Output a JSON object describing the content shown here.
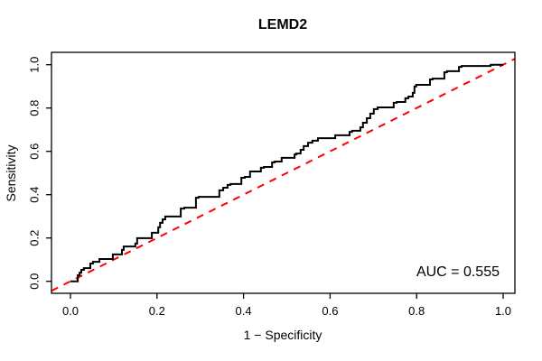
{
  "chart_data": {
    "type": "line",
    "title": "LEMD2",
    "xlabel": "1 − Specificity",
    "ylabel": "Sensitivity",
    "annotation": "AUC = 0.555",
    "auc": 0.555,
    "xlim": [
      0,
      1
    ],
    "ylim": [
      0,
      1
    ],
    "x_ticks": [
      0.0,
      0.2,
      0.4,
      0.6,
      0.8,
      1.0
    ],
    "y_ticks": [
      0.0,
      0.2,
      0.4,
      0.6,
      0.8,
      1.0
    ],
    "x_tick_labels": [
      "0.0",
      "0.2",
      "0.4",
      "0.6",
      "0.8",
      "1.0"
    ],
    "y_tick_labels": [
      "0.0",
      "0.2",
      "0.4",
      "0.6",
      "0.8",
      "1.0"
    ],
    "grid": false,
    "legend": "none",
    "colors": {
      "curve": "#000000",
      "reference": "#FF0000",
      "frame": "#000000",
      "background": "#FFFFFF"
    },
    "series": [
      {
        "name": "ROC curve",
        "style": "step",
        "color": "#000000",
        "line_width": 2,
        "points": [
          [
            0,
            0
          ],
          [
            0.017,
            0
          ],
          [
            0.017,
            0.015
          ],
          [
            0.021,
            0.028
          ],
          [
            0.025,
            0.04
          ],
          [
            0.031,
            0.053
          ],
          [
            0.035,
            0.061
          ],
          [
            0.046,
            0.061
          ],
          [
            0.046,
            0.082
          ],
          [
            0.052,
            0.082
          ],
          [
            0.052,
            0.09
          ],
          [
            0.067,
            0.09
          ],
          [
            0.067,
            0.103
          ],
          [
            0.098,
            0.103
          ],
          [
            0.098,
            0.12
          ],
          [
            0.119,
            0.124
          ],
          [
            0.123,
            0.145
          ],
          [
            0.129,
            0.161
          ],
          [
            0.15,
            0.161
          ],
          [
            0.154,
            0.174
          ],
          [
            0.161,
            0.199
          ],
          [
            0.188,
            0.199
          ],
          [
            0.188,
            0.224
          ],
          [
            0.203,
            0.224
          ],
          [
            0.207,
            0.249
          ],
          [
            0.213,
            0.27
          ],
          [
            0.219,
            0.286
          ],
          [
            0.225,
            0.299
          ],
          [
            0.255,
            0.299
          ],
          [
            0.263,
            0.336
          ],
          [
            0.29,
            0.34
          ],
          [
            0.296,
            0.386
          ],
          [
            0.344,
            0.39
          ],
          [
            0.353,
            0.42
          ],
          [
            0.363,
            0.432
          ],
          [
            0.37,
            0.445
          ],
          [
            0.395,
            0.449
          ],
          [
            0.403,
            0.478
          ],
          [
            0.415,
            0.482
          ],
          [
            0.422,
            0.507
          ],
          [
            0.44,
            0.507
          ],
          [
            0.447,
            0.524
          ],
          [
            0.466,
            0.528
          ],
          [
            0.472,
            0.549
          ],
          [
            0.488,
            0.553
          ],
          [
            0.493,
            0.57
          ],
          [
            0.518,
            0.57
          ],
          [
            0.522,
            0.586
          ],
          [
            0.532,
            0.59
          ],
          [
            0.539,
            0.607
          ],
          [
            0.549,
            0.624
          ],
          [
            0.559,
            0.64
          ],
          [
            0.572,
            0.649
          ],
          [
            0.578,
            0.661
          ],
          [
            0.612,
            0.661
          ],
          [
            0.618,
            0.674
          ],
          [
            0.645,
            0.674
          ],
          [
            0.651,
            0.69
          ],
          [
            0.67,
            0.695
          ],
          [
            0.676,
            0.711
          ],
          [
            0.685,
            0.732
          ],
          [
            0.693,
            0.753
          ],
          [
            0.701,
            0.774
          ],
          [
            0.71,
            0.795
          ],
          [
            0.747,
            0.803
          ],
          [
            0.754,
            0.824
          ],
          [
            0.774,
            0.828
          ],
          [
            0.781,
            0.845
          ],
          [
            0.791,
            0.853
          ],
          [
            0.795,
            0.87
          ],
          [
            0.799,
            0.899
          ],
          [
            0.831,
            0.907
          ],
          [
            0.837,
            0.932
          ],
          [
            0.864,
            0.936
          ],
          [
            0.87,
            0.965
          ],
          [
            0.898,
            0.97
          ],
          [
            0.904,
            0.99
          ],
          [
            0.971,
            0.994
          ],
          [
            0.977,
            0.999
          ],
          [
            1,
            1
          ]
        ]
      },
      {
        "name": "chance diagonal",
        "style": "dashed",
        "color": "#FF0000",
        "line_width": 2,
        "points": [
          [
            -0.0438,
            -0.0438
          ],
          [
            1.0271,
            1.0271
          ]
        ]
      }
    ]
  }
}
